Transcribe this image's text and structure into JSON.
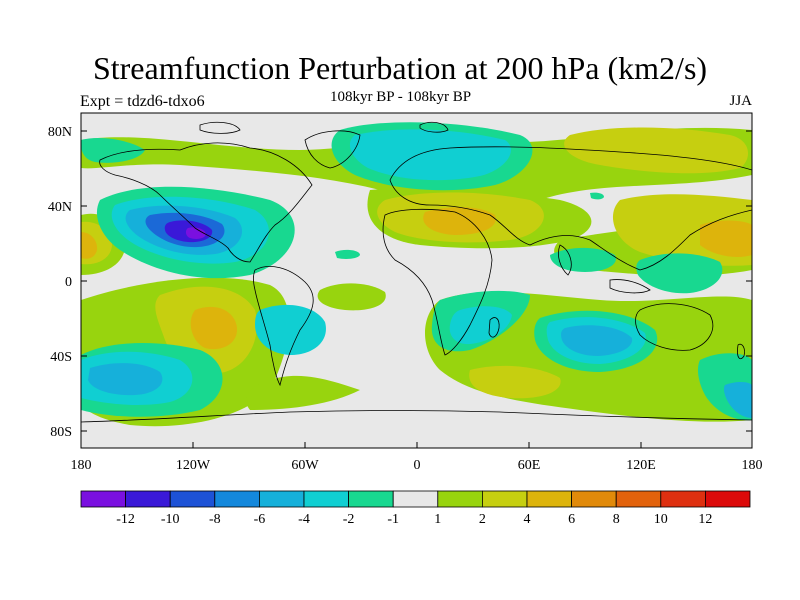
{
  "header": {
    "title": "Streamfunction Perturbation at 200 hPa (km2/s)",
    "subtitle": "108kyr BP - 108kyr BP",
    "left_label": "Expt = tdzd6-tdxo6",
    "right_label": "JJA"
  },
  "axes": {
    "lat_labels": [
      "80N",
      "40N",
      "0",
      "40S",
      "80S"
    ],
    "lon_labels": [
      "180",
      "120W",
      "60W",
      "0",
      "60E",
      "120E",
      "180"
    ]
  },
  "colorbar": {
    "labels": [
      "-12",
      "-10",
      "-8",
      "-6",
      "-4",
      "-2",
      "-1",
      "1",
      "2",
      "4",
      "6",
      "8",
      "10",
      "12"
    ],
    "colors": [
      "#7a10e0",
      "#3a19d8",
      "#1d52d6",
      "#1488dc",
      "#16b0da",
      "#10cfd2",
      "#18d890",
      "#e8e8e8",
      "#98d40e",
      "#c6cf10",
      "#ddb40c",
      "#e18a0a",
      "#e2620c",
      "#de3010",
      "#dc0a0a"
    ]
  }
}
